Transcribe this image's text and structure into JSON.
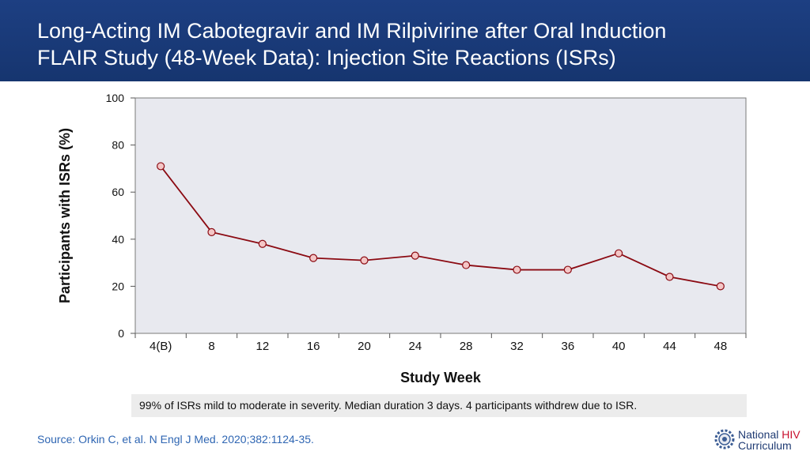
{
  "header": {
    "title_line1": "Long-Acting IM Cabotegravir and IM Rilpivirine after Oral Induction",
    "title_line2": "FLAIR Study (48-Week Data): Injection Site Reactions (ISRs)"
  },
  "chart_data": {
    "type": "line",
    "title": "",
    "xlabel": "Study Week",
    "ylabel": "Participants with ISRs (%)",
    "categories": [
      "4(B)",
      "8",
      "12",
      "16",
      "20",
      "24",
      "28",
      "32",
      "36",
      "40",
      "44",
      "48"
    ],
    "series": [
      {
        "name": "ISRs",
        "values": [
          71,
          43,
          38,
          32,
          31,
          33,
          29,
          27,
          27,
          34,
          24,
          20
        ]
      }
    ],
    "ylim": [
      0,
      100
    ],
    "yticks": [
      0,
      20,
      40,
      60,
      80,
      100
    ],
    "line_color": "#8b0a12",
    "marker_fill": "#f4c6c6",
    "plot_bg": "#e8e9ef"
  },
  "note": "99% of ISRs mild to moderate in severity. Median duration 3 days. 4 participants withdrew due to ISR.",
  "source": "Source: Orkin C, et al. N Engl J Med. 2020;382:1124-35.",
  "logo": {
    "word1": "National",
    "word2": "HIV",
    "word3": "Curriculum"
  }
}
